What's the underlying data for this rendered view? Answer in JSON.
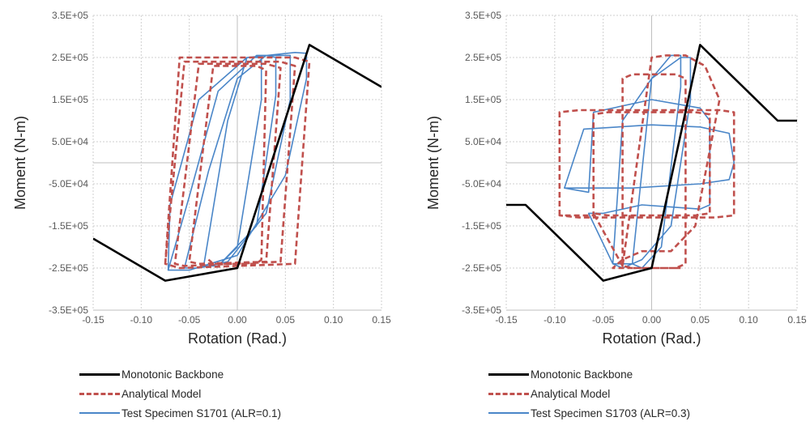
{
  "chart_data": [
    {
      "type": "line",
      "title": "",
      "xlabel": "Rotation (Rad.)",
      "ylabel": "Moment (N-m)",
      "xlim": [
        -0.15,
        0.15
      ],
      "ylim": [
        -350000,
        350000
      ],
      "x_ticks": [
        "-0.15",
        "-0.10",
        "-0.05",
        "0.00",
        "0.05",
        "0.10",
        "0.15"
      ],
      "x_tick_values": [
        -0.15,
        -0.1,
        -0.05,
        0.0,
        0.05,
        0.1,
        0.15
      ],
      "y_ticks": [
        "3.5E+05",
        "2.5E+05",
        "1.5E+05",
        "5.0E+04",
        "-5.0E+04",
        "-1.5E+05",
        "-2.5E+05",
        "-3.5E+05"
      ],
      "y_tick_values": [
        350000,
        250000,
        150000,
        50000,
        -50000,
        -150000,
        -250000,
        -350000
      ],
      "grid": true,
      "legend_position": "bottom",
      "series": [
        {
          "name": "Monotonic Backbone",
          "style": "solid",
          "color": "#000000",
          "x": [
            -0.15,
            -0.075,
            0.0,
            0.075,
            0.15
          ],
          "y": [
            -180000,
            -280000,
            -250000,
            280000,
            180000
          ]
        },
        {
          "name": "Analytical Model",
          "style": "dashed",
          "color": "#C0504D",
          "x": [
            -0.075,
            -0.06,
            0.06,
            0.075,
            0.075,
            0.06,
            -0.06,
            -0.075,
            -0.075,
            -0.055,
            0.045,
            0.06,
            0.06,
            0.045,
            -0.055,
            -0.065,
            -0.065,
            -0.04,
            0.03,
            0.045,
            0.045,
            0.03,
            -0.04,
            -0.05,
            -0.05,
            -0.025,
            0.02,
            0.03,
            0.025,
            0.02,
            -0.025,
            -0.03,
            -0.03
          ],
          "y": [
            -240000,
            250000,
            250000,
            240000,
            240000,
            -240000,
            -250000,
            -240000,
            -240000,
            240000,
            240000,
            230000,
            230000,
            -235000,
            -245000,
            -240000,
            -240000,
            235000,
            235000,
            225000,
            225000,
            -235000,
            -240000,
            -235000,
            -235000,
            230000,
            230000,
            220000,
            -230000,
            -240000,
            -240000,
            -230000,
            -230000
          ]
        },
        {
          "name": "Test Specimen S1701 (ALR=0.1)",
          "style": "solid",
          "color": "#4A86C8",
          "x": [
            -0.072,
            -0.07,
            -0.04,
            0.01,
            0.06,
            0.072,
            0.072,
            0.05,
            0.0,
            -0.05,
            -0.072,
            -0.072,
            -0.05,
            -0.02,
            0.02,
            0.055,
            0.055,
            0.03,
            -0.01,
            -0.04,
            -0.055,
            -0.055,
            -0.03,
            0.0,
            0.03,
            0.04,
            0.04,
            0.02,
            -0.02,
            -0.035,
            -0.035,
            -0.01,
            0.01,
            0.025,
            0.025,
            0.0,
            -0.02,
            -0.02
          ],
          "y": [
            -255000,
            -100000,
            150000,
            250000,
            262000,
            260000,
            200000,
            -30000,
            -220000,
            -255000,
            -255000,
            -255000,
            -80000,
            170000,
            255000,
            255000,
            150000,
            -120000,
            -235000,
            -250000,
            -250000,
            -250000,
            -20000,
            200000,
            255000,
            250000,
            160000,
            -150000,
            -245000,
            -245000,
            -245000,
            100000,
            250000,
            250000,
            150000,
            -200000,
            -245000,
            -245000
          ]
        }
      ]
    },
    {
      "type": "line",
      "title": "",
      "xlabel": "Rotation (Rad.)",
      "ylabel": "Moment (N-m)",
      "xlim": [
        -0.15,
        0.15
      ],
      "ylim": [
        -350000,
        350000
      ],
      "x_ticks": [
        "-0.15",
        "-0.10",
        "-0.05",
        "0.00",
        "0.05",
        "0.10",
        "0.15"
      ],
      "x_tick_values": [
        -0.15,
        -0.1,
        -0.05,
        0.0,
        0.05,
        0.1,
        0.15
      ],
      "y_ticks": [
        "3.5E+05",
        "2.5E+05",
        "1.5E+05",
        "5.0E+04",
        "-5.0E+04",
        "-1.5E+05",
        "-2.5E+05",
        "-3.5E+05"
      ],
      "y_tick_values": [
        350000,
        250000,
        150000,
        50000,
        -50000,
        -150000,
        -250000,
        -350000
      ],
      "grid": true,
      "legend_position": "bottom",
      "series": [
        {
          "name": "Monotonic Backbone",
          "style": "solid",
          "color": "#000000",
          "x": [
            -0.15,
            -0.13,
            -0.05,
            0.0,
            0.05,
            0.13,
            0.15
          ],
          "y": [
            -100000,
            -100000,
            -280000,
            -250000,
            280000,
            100000,
            100000
          ]
        },
        {
          "name": "Analytical Model",
          "style": "dashed",
          "color": "#C0504D",
          "x": [
            -0.095,
            -0.095,
            -0.075,
            0.07,
            0.085,
            0.085,
            0.065,
            -0.075,
            -0.095,
            -0.095,
            -0.06,
            -0.06,
            -0.045,
            0.045,
            0.06,
            0.06,
            0.045,
            -0.045,
            -0.06,
            -0.06,
            -0.03,
            -0.03,
            -0.02,
            0.025,
            0.035,
            0.035,
            0.025,
            -0.02,
            -0.03,
            -0.03,
            0.0,
            0.015,
            0.035,
            0.055,
            0.07,
            0.07,
            0.045,
            0.02,
            -0.01,
            -0.03,
            -0.04,
            -0.04,
            -0.02,
            0.03,
            0.02
          ],
          "y": [
            -125000,
            120000,
            125000,
            125000,
            120000,
            -125000,
            -130000,
            -130000,
            -125000,
            -125000,
            -125000,
            115000,
            120000,
            120000,
            115000,
            -120000,
            -125000,
            -125000,
            -120000,
            -120000,
            -245000,
            200000,
            210000,
            210000,
            200000,
            -240000,
            -250000,
            -250000,
            -245000,
            -245000,
            250000,
            255000,
            255000,
            230000,
            150000,
            150000,
            -150000,
            -210000,
            -210000,
            -230000,
            -250000,
            -250000,
            -250000,
            -250000,
            -250000
          ]
        },
        {
          "name": "Test Specimen S1703 (ALR=0.3)",
          "style": "solid",
          "color": "#4A86C8",
          "x": [
            -0.09,
            -0.07,
            0.0,
            0.05,
            0.08,
            0.085,
            0.08,
            0.05,
            -0.02,
            -0.07,
            -0.09,
            -0.09,
            -0.065,
            -0.06,
            0.0,
            0.05,
            0.06,
            0.06,
            0.05,
            -0.01,
            -0.05,
            -0.065,
            -0.065,
            -0.04,
            -0.03,
            0.0,
            0.03,
            0.04,
            0.04,
            0.02,
            -0.01,
            -0.03,
            -0.04,
            -0.04,
            -0.02,
            0.0,
            0.02,
            0.03,
            0.03,
            0.01,
            -0.01,
            -0.02,
            -0.02
          ],
          "y": [
            -60000,
            80000,
            90000,
            85000,
            70000,
            0,
            -40000,
            -50000,
            -60000,
            -60000,
            -60000,
            -60000,
            -70000,
            120000,
            150000,
            130000,
            100000,
            -100000,
            -110000,
            -100000,
            -120000,
            -120000,
            -120000,
            -240000,
            100000,
            200000,
            250000,
            250000,
            150000,
            -150000,
            -230000,
            -250000,
            -240000,
            -240000,
            -240000,
            200000,
            255000,
            255000,
            180000,
            -200000,
            -250000,
            -240000,
            -240000
          ]
        }
      ]
    }
  ],
  "legends": [
    {
      "items": [
        {
          "label": "Monotonic Backbone",
          "style": "solid-black"
        },
        {
          "label": "Analytical Model",
          "style": "dashed-red"
        },
        {
          "label": "Test Specimen S1701 (ALR=0.1)",
          "style": "solid-blue"
        }
      ]
    },
    {
      "items": [
        {
          "label": "Monotonic Backbone",
          "style": "solid-black"
        },
        {
          "label": "Analytical Model",
          "style": "dashed-red"
        },
        {
          "label": "Test Specimen S1703 (ALR=0.3)",
          "style": "solid-blue"
        }
      ]
    }
  ]
}
